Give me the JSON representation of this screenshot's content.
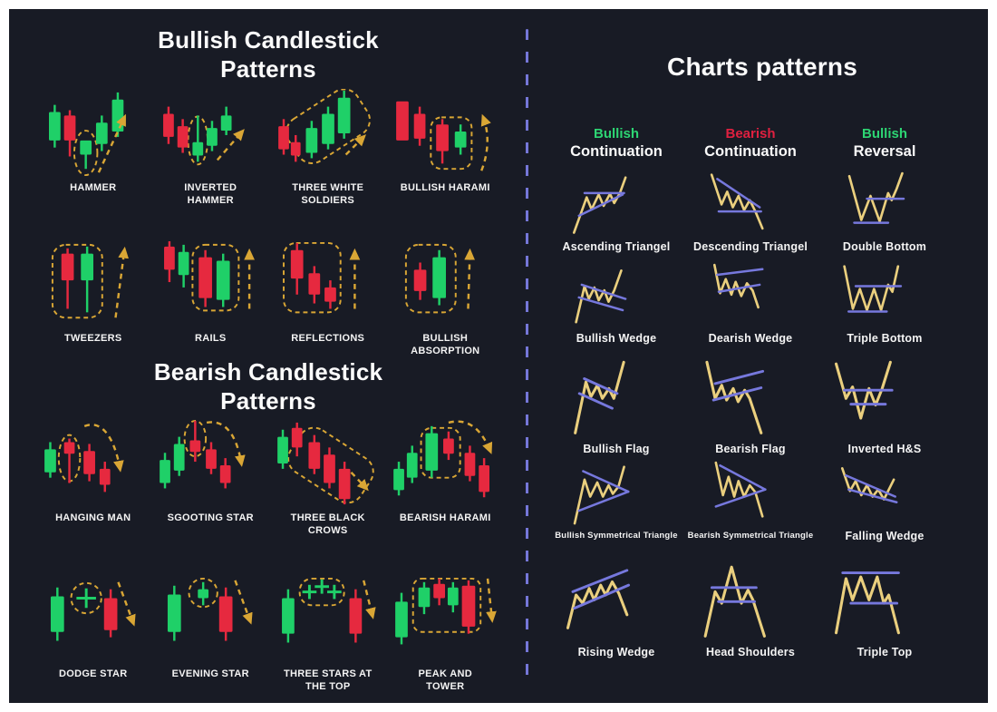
{
  "left": {
    "bullish_title": "Bullish Candlestick Patterns",
    "bearish_title": "Bearish Candlestick Patterns",
    "bullish_patterns": [
      "HAMMER",
      "INVERTED HAMMER",
      "THREE WHITE SOLDIERS",
      "BULLISH HARAMI",
      "TWEEZERS",
      "RAILS",
      "REFLECTIONS",
      "BULLISH ABSORPTION"
    ],
    "bearish_patterns": [
      "HANGING MAN",
      "SGOOTING STAR",
      "THREE BLACK CROWS",
      "BEARISH HARAMI",
      "DODGE STAR",
      "EVENING STAR",
      "THREE STARS AT THE TOP",
      "PEAK AND TOWER"
    ]
  },
  "right": {
    "title": "Charts patterns",
    "columns": [
      {
        "type": "Bullish",
        "category": "Continuation"
      },
      {
        "type": "Bearish",
        "category": "Continuation"
      },
      {
        "type": "Bullish",
        "category": "Reversal"
      }
    ],
    "patterns": [
      "Ascending Triangel",
      "Descending Triangel",
      "Double Bottom",
      "Bullish Wedge",
      "Dearish Wedge",
      "Triple Bottom",
      "Bullish Flag",
      "Bearish Flag",
      "Inverted H&S",
      "Bullish Symmetrical Triangle",
      "Bearish Symmetrical Triangle",
      "Falling Wedge",
      "Rising Wedge",
      "Head Shoulders",
      "Triple Top"
    ]
  },
  "colors": {
    "bullish_candle_green": "#1fd068",
    "bearish_candle_red": "#e6293f",
    "highlight_gold": "#d9a635",
    "sketch_line_yellow": "#eacf7e",
    "sketch_trendline_purple": "#7678dd",
    "divider_purple": "#7577d8",
    "panel_background": "#181b25",
    "page_background": "#ffffff",
    "bullish_text_green": "#2dd573",
    "bearish_text_red": "#e02040"
  }
}
